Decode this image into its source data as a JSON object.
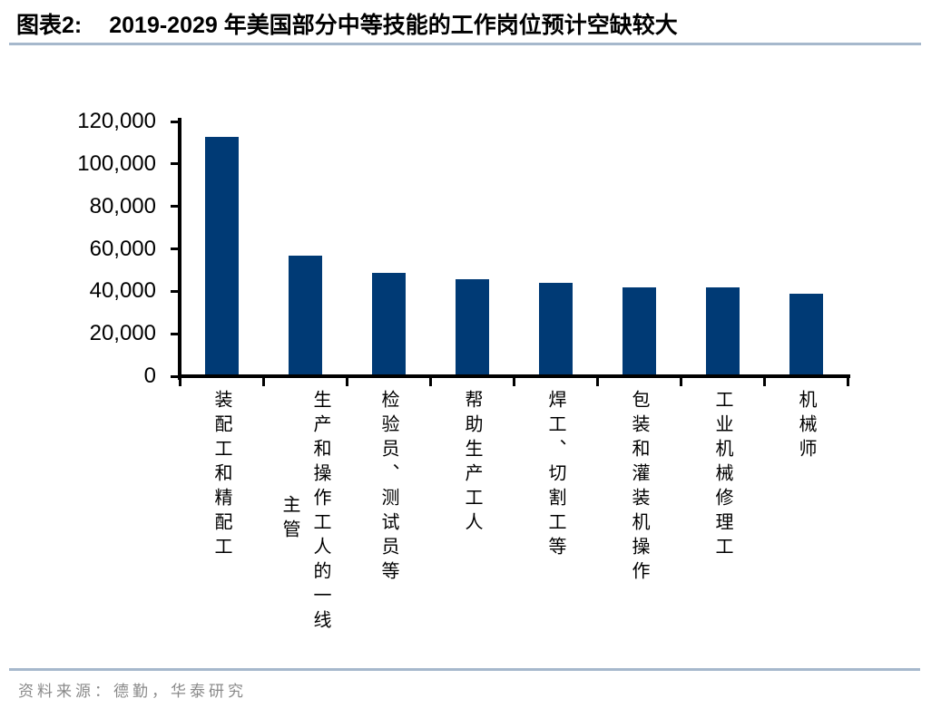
{
  "figure": {
    "label": "图表2:",
    "title": "2019-2029 年美国部分中等技能的工作岗位预计空缺较大",
    "source": "资料来源：德勤，华泰研究"
  },
  "colors": {
    "bar": "#003a75",
    "axis": "#000000",
    "title_text": "#000000",
    "divider": "#a6b8cc",
    "source_text": "#8a8a8a"
  },
  "chart_data": {
    "type": "bar",
    "title": "2019-2029 年美国部分中等技能的工作岗位预计空缺较大",
    "categories": [
      "装配工和精配工",
      "生产和操作工人的一线主管",
      "检验员、测试员等",
      "帮助生产工人",
      "焊工、切割工等",
      "包装和灌装机操作",
      "工业机械修理工",
      "机械师"
    ],
    "category_display_lines": [
      [
        "装配工和精配工"
      ],
      [
        "生产和操作工人的一线",
        "主管"
      ],
      [
        "检验员、测试员等"
      ],
      [
        "帮助生产工人"
      ],
      [
        "焊工、切割工等"
      ],
      [
        "包装和灌装机操作"
      ],
      [
        "工业机械修理工"
      ],
      [
        "机械师"
      ]
    ],
    "values": [
      112000,
      56000,
      48000,
      45000,
      43000,
      41000,
      41000,
      38000
    ],
    "xlabel": "",
    "ylabel": "",
    "ylim": [
      0,
      120000
    ],
    "ytick_interval": 20000,
    "ytick_labels": [
      "120,000",
      "100,000",
      "80,000",
      "60,000",
      "40,000",
      "20,000",
      "0"
    ],
    "grid": false,
    "legend": null,
    "bar_color": "#003a75"
  }
}
